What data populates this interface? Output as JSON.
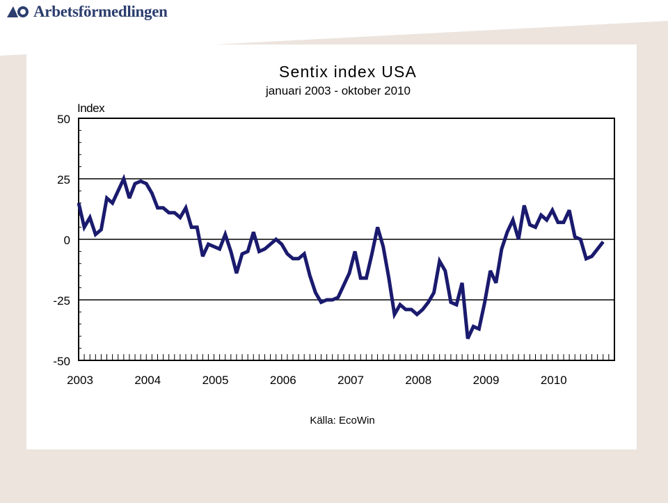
{
  "brand": {
    "name": "Arbetsförmedlingen",
    "color": "#2c3e6e"
  },
  "chart_data": {
    "type": "line",
    "title": "Sentix index USA",
    "subtitle": "januari 2003 - oktober 2010",
    "ylabel": "Index",
    "source": "Källa:  EcoWin",
    "ylim": [
      -50,
      50
    ],
    "yticks": [
      50,
      25,
      0,
      -25,
      -50
    ],
    "ytick_labels": [
      "50",
      "25",
      "0",
      "-25",
      "-50"
    ],
    "xlim": [
      2003.0,
      2010.917
    ],
    "xtick_labels": [
      "2003",
      "2004",
      "2005",
      "2006",
      "2007",
      "2008",
      "2009",
      "2010"
    ],
    "grid": "horizontal",
    "line_color": "#1a1a6e",
    "series": [
      {
        "name": "Sentix index USA",
        "start": "2003-01",
        "values": [
          15,
          5,
          9,
          2,
          4,
          17,
          15,
          20,
          25,
          17,
          23,
          24,
          23,
          19,
          13,
          13,
          11,
          11,
          9,
          13,
          5,
          5,
          -7,
          -2,
          -3,
          -4,
          2,
          -5,
          -14,
          -6,
          -5,
          3,
          -5,
          -4,
          -2,
          0,
          -2,
          -6,
          -8,
          -8,
          -6,
          -15,
          -22,
          -26,
          -25,
          -25,
          -24,
          -19,
          -14,
          -5,
          -16,
          -16,
          -6,
          5,
          -3,
          -16,
          -31,
          -27,
          -29,
          -29,
          -31,
          -29,
          -26,
          -22,
          -9,
          -13,
          -26,
          -27,
          -18,
          -41,
          -36,
          -37,
          -26,
          -13,
          -18,
          -4,
          3,
          8,
          0,
          14,
          6,
          5,
          10,
          8,
          12,
          7,
          7,
          12,
          1,
          0,
          -8,
          -7,
          -4,
          -1
        ]
      }
    ]
  }
}
